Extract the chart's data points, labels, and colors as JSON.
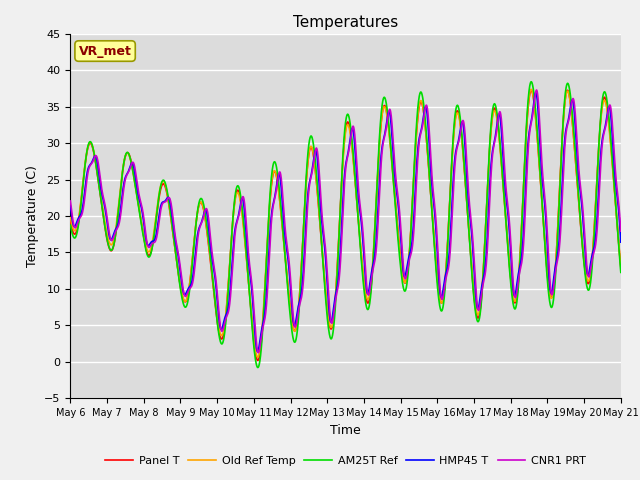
{
  "title": "Temperatures",
  "xlabel": "Time",
  "ylabel": "Temperature (C)",
  "ylim": [
    -5,
    45
  ],
  "annotation_text": "VR_met",
  "annotation_color": "#8B0000",
  "annotation_bg": "#FFFF99",
  "series_colors": {
    "Panel T": "#FF0000",
    "Old Ref Temp": "#FFA500",
    "AM25T Ref": "#00DD00",
    "HMP45 T": "#0000FF",
    "CNR1 PRT": "#CC00CC"
  },
  "series_order": [
    "Panel T",
    "Old Ref Temp",
    "AM25T Ref",
    "HMP45 T",
    "CNR1 PRT"
  ],
  "xtick_labels": [
    "May 6",
    "May 7",
    "May 8",
    "May 9",
    "May 10",
    "May 11",
    "May 12",
    "May 13",
    "May 14",
    "May 15",
    "May 16",
    "May 17",
    "May 18",
    "May 19",
    "May 20",
    "May 21"
  ],
  "ytick_values": [
    -5,
    0,
    5,
    10,
    15,
    20,
    25,
    30,
    35,
    40,
    45
  ],
  "background_color": "#DCDCDC",
  "grid_color": "#FFFFFF",
  "linewidth": 1.2,
  "fig_bg": "#F0F0F0"
}
